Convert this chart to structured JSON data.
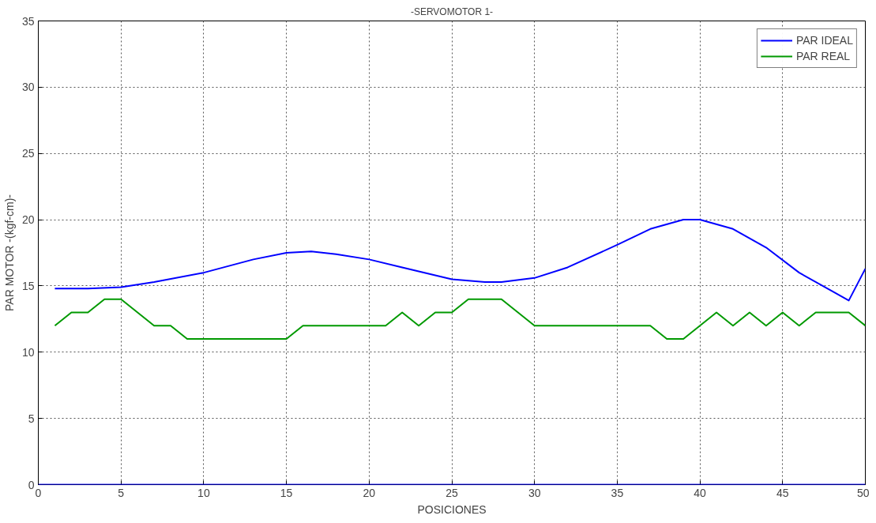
{
  "chart_data": {
    "type": "line",
    "title": "-SERVOMOTOR 1-",
    "xlabel": "POSICIONES",
    "ylabel": "PAR MOTOR -(kgf-cm)-",
    "xlim": [
      0,
      50
    ],
    "xticks": [
      0,
      5,
      10,
      15,
      20,
      25,
      30,
      35,
      40,
      45,
      50
    ],
    "ylim": [
      0,
      35
    ],
    "yticks": [
      0,
      5,
      10,
      15,
      20,
      25,
      30,
      35
    ],
    "grid": true,
    "legend": "top right",
    "ref_lines": [
      {
        "axis": "y",
        "value": 0,
        "color": "#0000ff"
      }
    ],
    "series": [
      {
        "name": "PAR IDEAL",
        "color": "#0000ff",
        "x": [
          1,
          3,
          5,
          7,
          10,
          13,
          15,
          16.5,
          18,
          20,
          22,
          25,
          27,
          28,
          30,
          32,
          35,
          37,
          39,
          40,
          42,
          44,
          46,
          48,
          49,
          50
        ],
        "values": [
          14.8,
          14.8,
          14.9,
          15.3,
          16.0,
          17.0,
          17.5,
          17.6,
          17.4,
          17.0,
          16.4,
          15.5,
          15.3,
          15.3,
          15.6,
          16.4,
          18.1,
          19.3,
          20.0,
          20.0,
          19.3,
          17.9,
          16.0,
          14.6,
          13.9,
          16.3
        ]
      },
      {
        "name": "PAR REAL",
        "color": "#009900",
        "x": [
          1,
          2,
          3,
          4,
          5,
          6,
          7,
          8,
          9,
          10,
          11,
          12,
          13,
          14,
          15,
          16,
          17,
          18,
          19,
          20,
          21,
          22,
          23,
          24,
          25,
          26,
          27,
          28,
          29,
          30,
          31,
          32,
          33,
          34,
          35,
          36,
          37,
          38,
          39,
          40,
          41,
          42,
          43,
          44,
          45,
          46,
          47,
          48,
          49,
          50
        ],
        "values": [
          12,
          13,
          13,
          14,
          14,
          13,
          12,
          12,
          11,
          11,
          11,
          11,
          11,
          11,
          11,
          12,
          12,
          12,
          12,
          12,
          12,
          13,
          12,
          13,
          13,
          14,
          14,
          14,
          13,
          12,
          12,
          12,
          12,
          12,
          12,
          12,
          12,
          11,
          11,
          12,
          13,
          12,
          13,
          12,
          13,
          12,
          13,
          13,
          13,
          12
        ]
      }
    ]
  }
}
